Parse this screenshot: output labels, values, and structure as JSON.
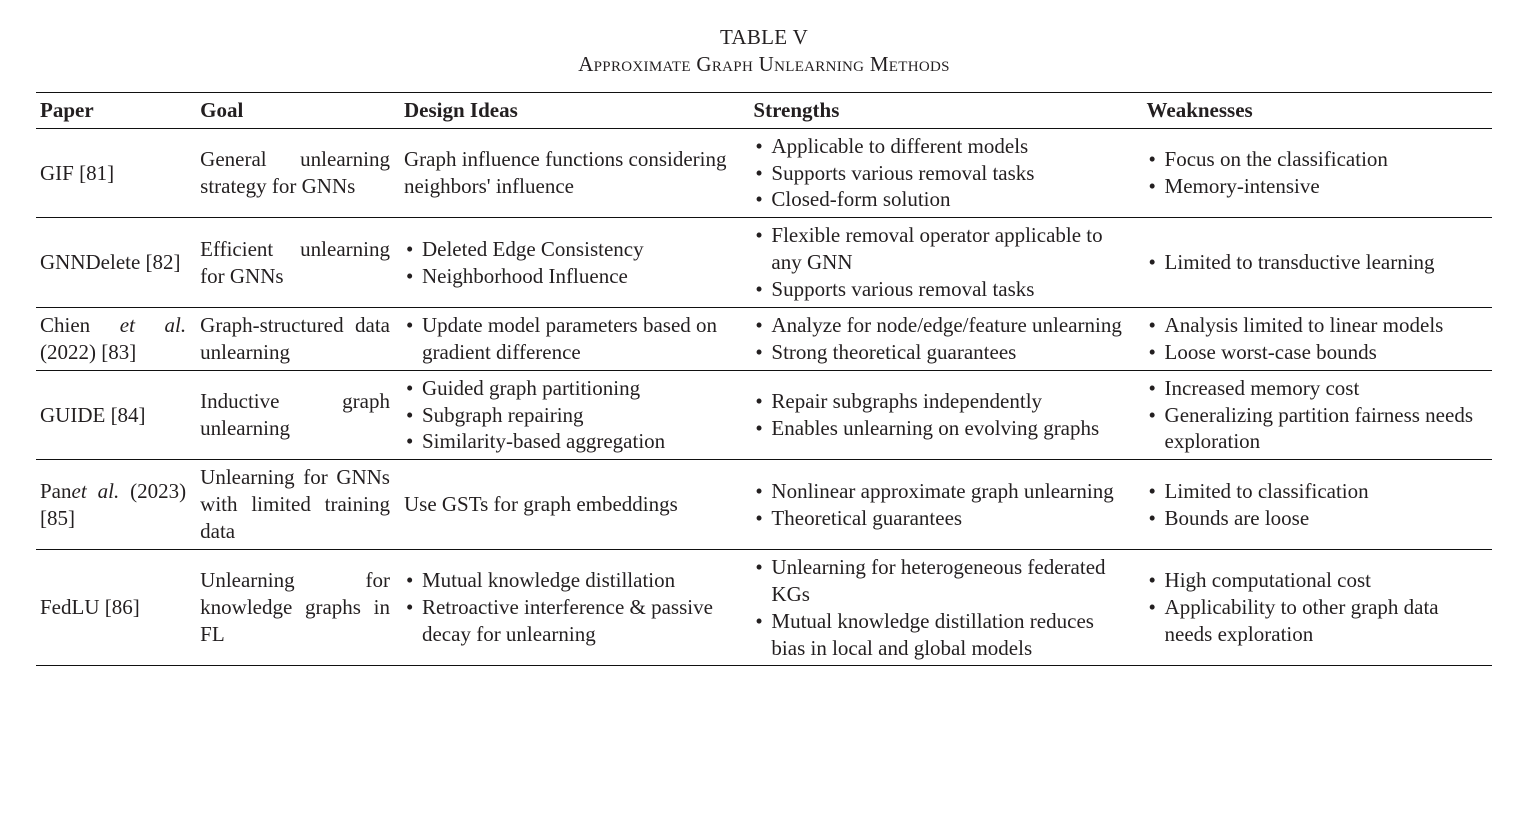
{
  "caption": {
    "line1": "TABLE V",
    "line2": "Approximate Graph Unlearning Methods"
  },
  "columns": {
    "paper": "Paper",
    "goal": "Goal",
    "design": "Design Ideas",
    "strengths": "Strengths",
    "weaknesses": "Weaknesses"
  },
  "col_widths_pct": [
    11,
    14,
    24,
    27,
    24
  ],
  "rows": [
    {
      "paper_html": "GIF [81]",
      "goal": "General unlearning strategy for GNNs",
      "design_plain": "Graph influence functions considering neighbors' influence",
      "strengths": [
        "Applicable to different models",
        "Supports various removal tasks",
        "Closed-form solution"
      ],
      "weaknesses": [
        "Focus on the classification",
        "Memory-intensive"
      ]
    },
    {
      "paper_html": "GNNDelete [82]",
      "goal": "Efficient unlearning for GNNs",
      "design_list": [
        "Deleted Edge Consistency",
        "Neighborhood Influence"
      ],
      "strengths": [
        "Flexible removal operator applicable to any GNN",
        "Supports various removal tasks"
      ],
      "weaknesses": [
        "Limited to transductive learning"
      ]
    },
    {
      "paper_html": "Chien <span class=\"et-al\">et al.</span> (2022) [83]",
      "goal": "Graph-structured data unlearning",
      "design_list": [
        "Update model parameters based on gradient difference"
      ],
      "strengths": [
        "Analyze for node/edge/feature unlearning",
        "Strong theoretical guarantees"
      ],
      "weaknesses": [
        "Analysis limited to linear models",
        "Loose worst-case bounds"
      ]
    },
    {
      "paper_html": "GUIDE [84]",
      "goal": "Inductive graph unlearning",
      "design_list": [
        "Guided graph partitioning",
        "Subgraph repairing",
        "Similarity-based aggregation"
      ],
      "strengths": [
        "Repair subgraphs independently",
        "Enables unlearning on evolving graphs"
      ],
      "weaknesses": [
        "Increased memory cost",
        "Generalizing partition fairness needs exploration"
      ]
    },
    {
      "paper_html": "Pan<span class=\"et-al\">et al.</span> (2023) [85]",
      "goal": "Unlearning for GNNs with limited training data",
      "design_plain": "Use GSTs for graph embeddings",
      "strengths": [
        "Nonlinear approximate graph unlearning",
        "Theoretical guarantees"
      ],
      "weaknesses": [
        "Limited to classification",
        "Bounds are loose"
      ]
    },
    {
      "paper_html": "FedLU [86]",
      "goal": "Unlearning for knowledge graphs in FL",
      "design_list": [
        "Mutual knowledge distillation",
        "Retroactive interference & passive decay for unlearning"
      ],
      "strengths": [
        "Unlearning for heterogeneous federated KGs",
        "Mutual knowledge distillation reduces bias in local and global models"
      ],
      "weaknesses": [
        "High computational cost",
        "Applicability to other graph data needs exploration"
      ]
    }
  ]
}
